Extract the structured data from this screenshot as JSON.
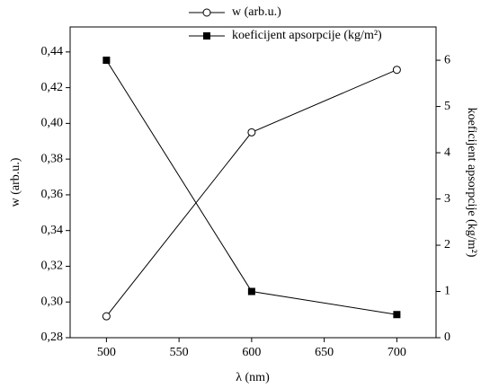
{
  "chart_data": {
    "type": "line",
    "x": [
      500,
      600,
      700
    ],
    "xlabel": "λ (nm)",
    "ylabel": "w (arb.u.)",
    "y2label": "koeficijent apsorpcije  (kg/m²)",
    "xlim": [
      475,
      727
    ],
    "xticks": [
      500,
      550,
      600,
      650,
      700
    ],
    "ylim": [
      0.28,
      0.454
    ],
    "yticks": [
      {
        "value": 0.28,
        "label": "0,28"
      },
      {
        "value": 0.3,
        "label": "0,30"
      },
      {
        "value": 0.32,
        "label": "0,32"
      },
      {
        "value": 0.34,
        "label": "0,34"
      },
      {
        "value": 0.36,
        "label": "0,36"
      },
      {
        "value": 0.38,
        "label": "0,38"
      },
      {
        "value": 0.4,
        "label": "0,40"
      },
      {
        "value": 0.42,
        "label": "0,42"
      },
      {
        "value": 0.44,
        "label": "0,44"
      }
    ],
    "y2lim": [
      0,
      6.72
    ],
    "y2ticks": [
      0,
      1,
      2,
      3,
      4,
      5,
      6
    ],
    "series": [
      {
        "name": "w (arb.u.)",
        "color": "#000000",
        "marker": "open-circle",
        "values": [
          0.292,
          0.395,
          0.43
        ]
      },
      {
        "name": "koeficijent apsorpcije  (kg/m²)",
        "color": "#000000",
        "marker": "filled-square",
        "axis": "y2",
        "values": [
          6.0,
          1.0,
          0.5
        ]
      }
    ]
  }
}
